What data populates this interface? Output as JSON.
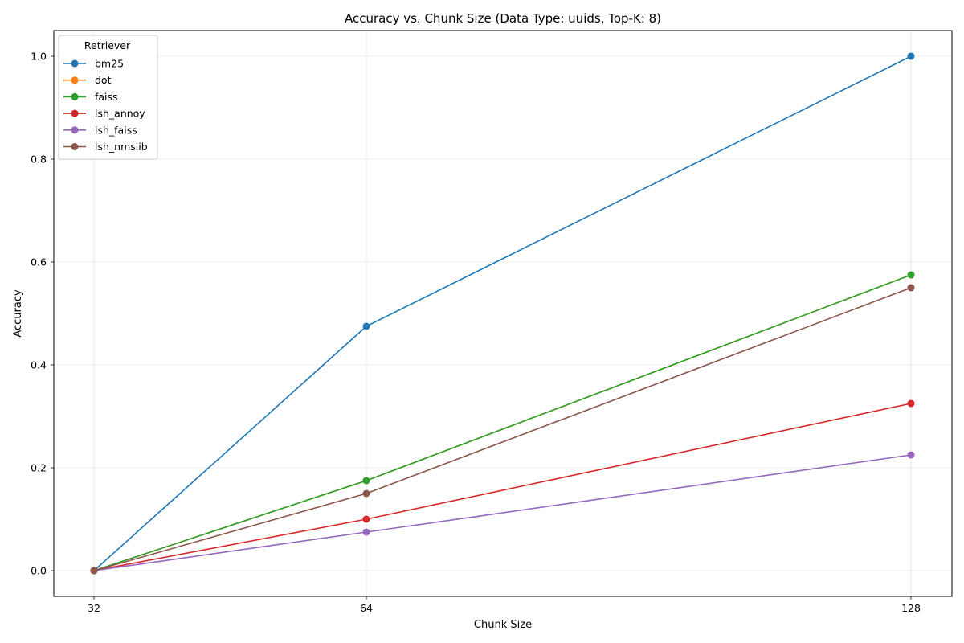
{
  "chart_data": {
    "type": "line",
    "title": "Accuracy vs. Chunk Size (Data Type: uuids, Top-K: 8)",
    "xlabel": "Chunk Size",
    "ylabel": "Accuracy",
    "x": [
      32,
      64,
      128
    ],
    "x_tick_labels": [
      "32",
      "64",
      "128"
    ],
    "y_ticks": [
      0.0,
      0.2,
      0.4,
      0.6,
      0.8,
      1.0
    ],
    "y_tick_labels": [
      "0.0",
      "0.2",
      "0.4",
      "0.6",
      "0.8",
      "1.0"
    ],
    "ylim": [
      -0.05,
      1.05
    ],
    "grid": true,
    "legend": {
      "title": "Retriever",
      "placement": "top-left"
    },
    "series": [
      {
        "name": "bm25",
        "color": "#1f77b4",
        "values": [
          0.0,
          0.475,
          1.0
        ]
      },
      {
        "name": "dot",
        "color": "#ff7f0e",
        "values": [
          0.0,
          0.175,
          0.575
        ]
      },
      {
        "name": "faiss",
        "color": "#2ca02c",
        "values": [
          0.0,
          0.175,
          0.575
        ]
      },
      {
        "name": "lsh_annoy",
        "color": "#d62728",
        "values": [
          0.0,
          0.1,
          0.325
        ]
      },
      {
        "name": "lsh_faiss",
        "color": "#9467bd",
        "values": [
          0.0,
          0.075,
          0.225
        ]
      },
      {
        "name": "lsh_nmslib",
        "color": "#8c564b",
        "values": [
          0.0,
          0.15,
          0.55
        ]
      }
    ]
  }
}
